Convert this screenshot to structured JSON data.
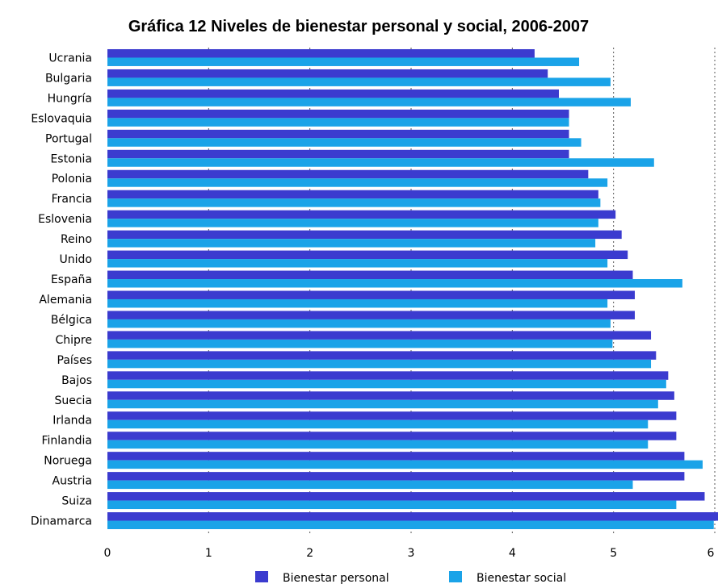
{
  "chart_data": {
    "type": "bar",
    "orientation": "horizontal",
    "title": "Gráfica 12 Niveles de bienestar personal y social, 2006-2007",
    "categories": [
      "Ucrania",
      "Bulgaria",
      "Hungría",
      "Eslovaquia",
      "Portugal",
      "Estonia",
      "Polonia",
      "Francia",
      "Eslovenia",
      "Reino",
      "Unido",
      "España",
      "Alemania",
      "Bélgica",
      "Chipre",
      "Países",
      "Bajos",
      "Suecia",
      "Irlanda",
      "Finlandia",
      "Noruega",
      "Austria",
      "Suiza",
      "Dinamarca"
    ],
    "series": [
      {
        "name": "Bienestar personal",
        "color": "#3b3bcf",
        "values": [
          4.22,
          4.35,
          4.46,
          4.56,
          4.56,
          4.56,
          4.75,
          4.85,
          5.02,
          5.08,
          5.14,
          5.19,
          5.21,
          5.21,
          5.37,
          5.42,
          5.54,
          5.6,
          5.62,
          5.62,
          5.7,
          5.7,
          5.9,
          6.05
        ]
      },
      {
        "name": "Bienestar social",
        "color": "#1aa3e8",
        "values": [
          4.66,
          4.97,
          5.17,
          4.56,
          4.68,
          5.4,
          4.94,
          4.87,
          4.85,
          4.82,
          4.94,
          5.68,
          4.94,
          4.97,
          4.99,
          5.37,
          5.52,
          5.44,
          5.34,
          5.34,
          5.88,
          5.19,
          5.62,
          5.99
        ]
      }
    ],
    "xlim": [
      0,
      6
    ],
    "xticks": [
      "0",
      "1",
      "2",
      "3",
      "4",
      "5",
      "6"
    ],
    "grid": "vertical dotted",
    "legend": "bottom"
  }
}
